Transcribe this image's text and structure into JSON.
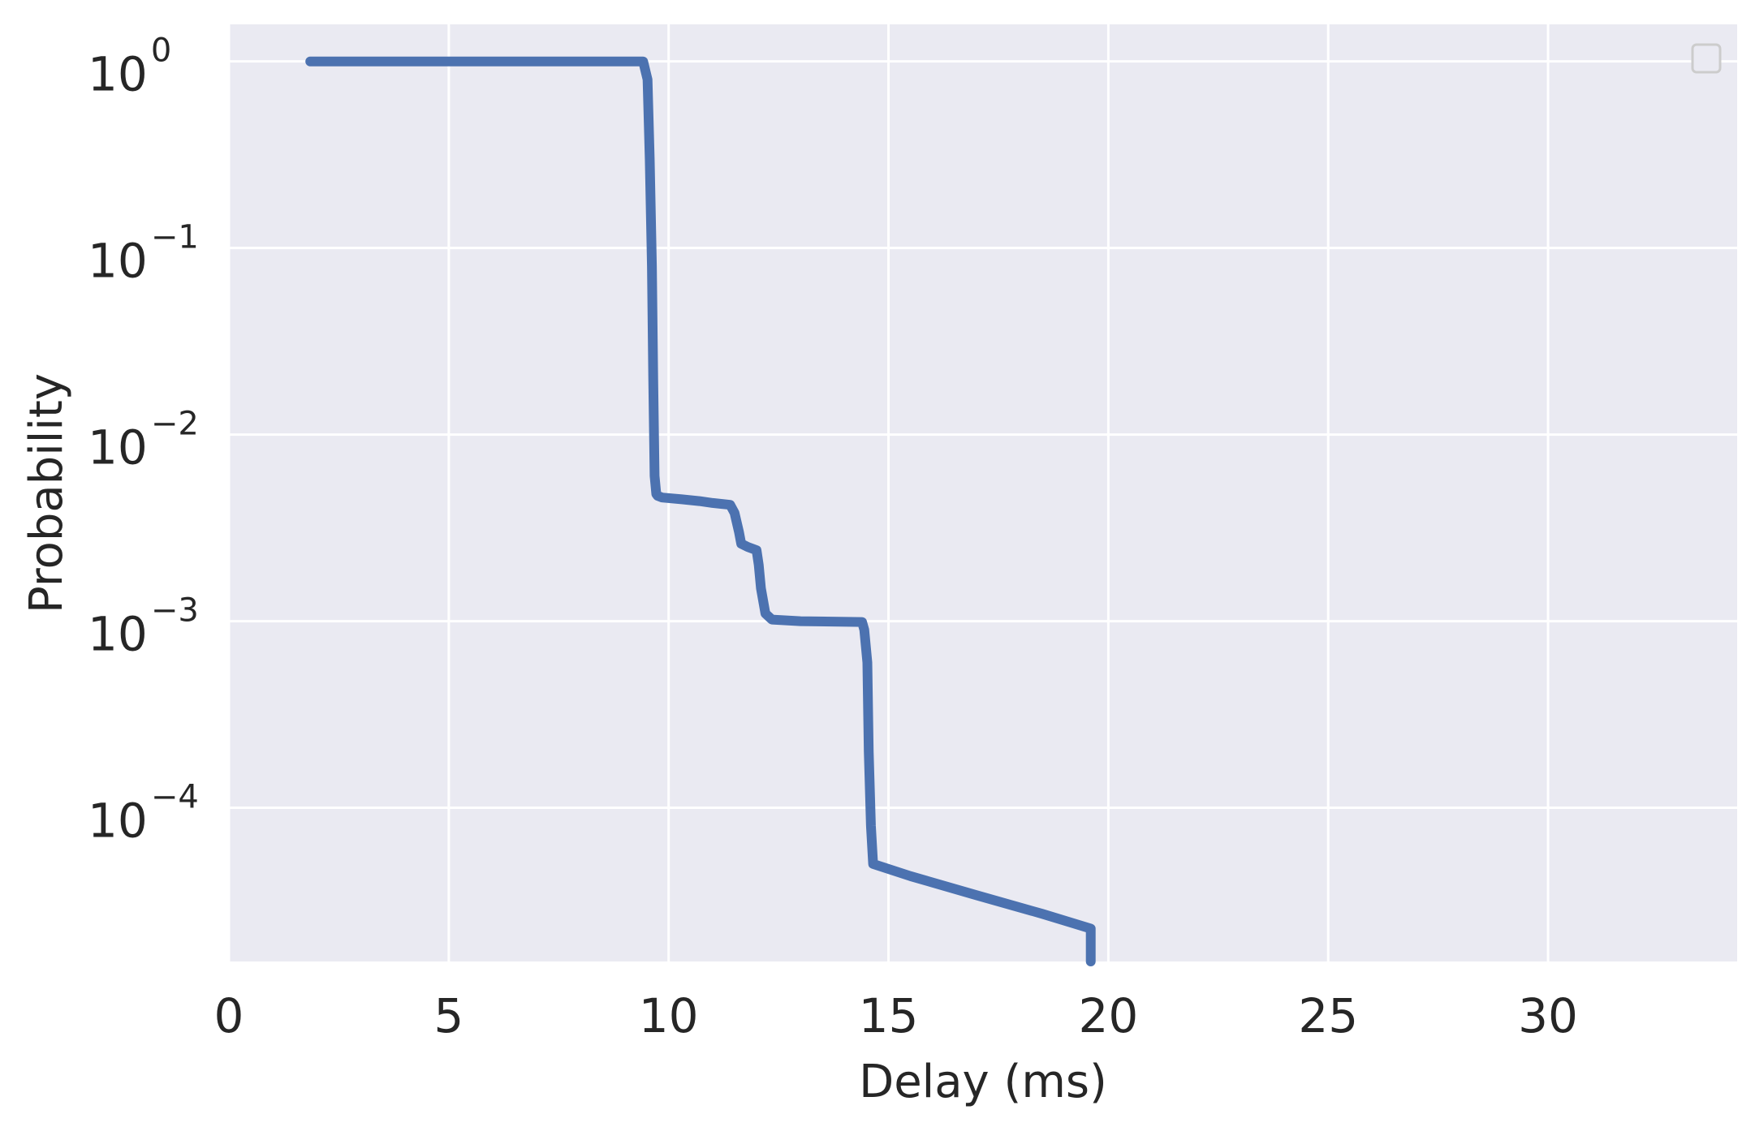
{
  "chart_data": {
    "type": "line",
    "title": "",
    "xlabel": "Delay (ms)",
    "ylabel": "Probability",
    "xlim": [
      0,
      34.3
    ],
    "ylim": [
      1.5e-05,
      1.58
    ],
    "yscale": "log",
    "grid": true,
    "legend": "top-right (empty)",
    "x_ticks": [
      0,
      5,
      10,
      15,
      20,
      25,
      30
    ],
    "x_tick_labels": [
      "0",
      "5",
      "10",
      "15",
      "20",
      "25",
      "30"
    ],
    "y_ticks": [
      1,
      0.1,
      0.01,
      0.001,
      0.0001
    ],
    "y_tick_labels": [
      {
        "base": "10",
        "exp": "0"
      },
      {
        "base": "10",
        "exp": "−1"
      },
      {
        "base": "10",
        "exp": "−2"
      },
      {
        "base": "10",
        "exp": "−3"
      },
      {
        "base": "10",
        "exp": "−4"
      }
    ],
    "colors": {
      "plot_background": "#eaeaf2",
      "grid": "#ffffff",
      "series": "#4c72b0",
      "text": "#262626"
    },
    "series": [
      {
        "x": [
          1.85,
          9.42,
          9.52,
          9.57,
          9.62,
          9.65,
          9.68,
          9.72,
          9.75,
          9.85,
          10.3,
          10.7,
          11.0,
          11.4,
          11.5,
          11.6,
          11.65,
          11.8,
          12.0,
          12.05,
          12.1,
          12.2,
          12.35,
          13.0,
          14.4,
          14.45,
          14.52,
          14.55,
          14.6,
          14.65,
          15.5,
          17.0,
          18.5,
          19.6,
          19.6
        ],
        "y": [
          1.0,
          1.0,
          0.8,
          0.3,
          0.08,
          0.02,
          0.006,
          0.0048,
          0.0047,
          0.0046,
          0.0045,
          0.0044,
          0.0043,
          0.0042,
          0.0038,
          0.003,
          0.0026,
          0.0025,
          0.0024,
          0.002,
          0.0015,
          0.0011,
          0.00102,
          0.001,
          0.00099,
          0.0009,
          0.0006,
          0.0002,
          8e-05,
          5e-05,
          4.3e-05,
          3.4e-05,
          2.7e-05,
          2.25e-05,
          1.5e-05
        ]
      }
    ]
  },
  "legend": {
    "entries": []
  }
}
